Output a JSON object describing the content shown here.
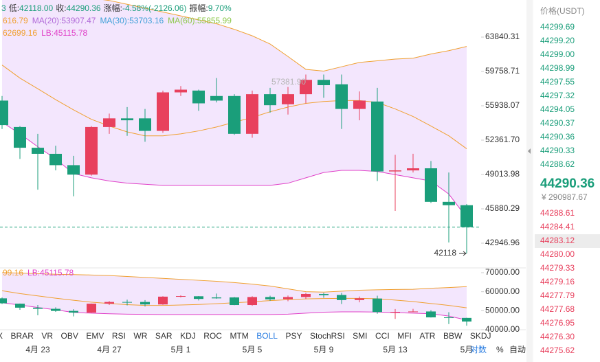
{
  "header": {
    "stats": [
      {
        "label": "3",
        "value": null
      },
      {
        "label": "低:",
        "value": "42118.00"
      },
      {
        "label": "收:",
        "value": "44290.36"
      },
      {
        "label": "涨幅:",
        "value": "-4.58%(-2126.06)"
      },
      {
        "label": "振幅:",
        "value": "9.70%"
      }
    ],
    "ma_legend": [
      {
        "text": "616.79",
        "color": "#f0a030"
      },
      {
        "text": "MA(20):53907.47",
        "color": "#b06ad8"
      },
      {
        "text": "MA(30):53703.16",
        "color": "#3fa0d8"
      },
      {
        "text": "MA(60):55855.99",
        "color": "#8cc84b"
      }
    ],
    "boll_legend": [
      {
        "text": "62699.16",
        "color": "#f0a030"
      },
      {
        "text": "LB:45115.78",
        "color": "#e040c8"
      }
    ],
    "sub_legend": [
      {
        "text": "99.16",
        "color": "#f0a030"
      },
      {
        "text": "LB:45115.78",
        "color": "#e040c8"
      }
    ]
  },
  "chart_data": [
    {
      "type": "candlestick",
      "log_scale": true,
      "categories": [
        null,
        null,
        "4月 23",
        null,
        null,
        null,
        "4月 27",
        null,
        null,
        null,
        "5月 1",
        null,
        null,
        null,
        "5月 5",
        null,
        null,
        null,
        "5月 9",
        null,
        null,
        null,
        "5月 13",
        null,
        null,
        null,
        "5月"
      ],
      "open": [
        56500,
        53700,
        51600,
        51000,
        49900,
        49000,
        53700,
        54600,
        54600,
        53300,
        57400,
        57600,
        57000,
        57000,
        53000,
        57200,
        56100,
        57200,
        58800,
        58300,
        55600,
        56400,
        49300,
        49400,
        49600,
        46500,
        46200
      ],
      "high": [
        57000,
        53800,
        53000,
        51800,
        50800,
        53800,
        55100,
        55800,
        55600,
        57600,
        58100,
        57700,
        59000,
        57200,
        57600,
        57900,
        58000,
        59400,
        59400,
        59400,
        57500,
        57900,
        50900,
        51000,
        50300,
        49200,
        46300
      ],
      "low": [
        53500,
        50500,
        47600,
        49400,
        47000,
        48900,
        53000,
        52800,
        52200,
        53100,
        57000,
        55400,
        56300,
        52900,
        52600,
        55200,
        55000,
        56200,
        56800,
        53500,
        54400,
        48400,
        45700,
        49200,
        46400,
        43000,
        42118
      ],
      "close": [
        53900,
        51600,
        51000,
        49900,
        49000,
        53700,
        54600,
        54400,
        53300,
        57400,
        57700,
        56200,
        56500,
        53000,
        57200,
        56000,
        57200,
        58800,
        58200,
        55600,
        56500,
        49300,
        49400,
        49600,
        46500,
        46200,
        44290.36
      ],
      "up_color": "#e8405d",
      "down_color": "#1a9e7a",
      "bands": [
        {
          "color": "#f0a030",
          "values": [
            70000,
            69800,
            69500,
            69200,
            69000,
            68800,
            68500,
            68000,
            67500,
            67000,
            66500,
            66000,
            65500,
            64800,
            64000,
            63000,
            61500,
            60000,
            59800,
            60300,
            60800,
            61000,
            61200,
            61300,
            61800,
            62200,
            62699.16
          ]
        },
        {
          "color": "#f0a030",
          "values": [
            60500,
            59000,
            57800,
            56600,
            55500,
            54500,
            53800,
            53200,
            52800,
            52800,
            53000,
            53300,
            53700,
            54200,
            54700,
            55300,
            55800,
            56200,
            56400,
            56500,
            56500,
            56300,
            55600,
            54800,
            53800,
            52800,
            51500
          ]
        },
        {
          "color": "#e040c8",
          "values": [
            54200,
            53000,
            51700,
            50500,
            49100,
            48700,
            48400,
            48200,
            48100,
            48000,
            48000,
            48000,
            48000,
            48000,
            48000,
            48000,
            48200,
            48700,
            49200,
            49400,
            49400,
            49300,
            49000,
            48700,
            48400,
            47200,
            45115.78
          ]
        }
      ],
      "band_fill": "#f3e6fd",
      "ylim": [
        40951,
        68563
      ],
      "yticks": [
        63840.31,
        59758.71,
        55938.07,
        {
          "value": 52361.7,
          "label": "52361.70"
        },
        49013.98,
        45880.29,
        42946.96
      ],
      "annotations": [
        "57381.90",
        "42118"
      ]
    },
    {
      "type": "candlestick-sub",
      "ylim": [
        39278,
        71805
      ],
      "yticks": [
        {
          "value": 70000,
          "label": "70000.00"
        },
        {
          "value": 60000,
          "label": "60000.00"
        },
        {
          "value": 50000,
          "label": "50000.00"
        },
        {
          "value": 40000,
          "label": "40000.00"
        }
      ]
    }
  ],
  "tabs": [
    "X",
    "BRAR",
    "VR",
    "OBV",
    "EMV",
    "RSI",
    "WR",
    "SAR",
    "KDJ",
    "ROC",
    "MTM",
    "BOLL",
    "PSY",
    "StochRSI",
    "SMI",
    "CCI",
    "MFI",
    "ATR",
    "BBW",
    "SKDJ"
  ],
  "active_tab": 11,
  "axis_options": [
    "对数",
    "%",
    "自动"
  ],
  "order_book": {
    "header": "价格(USDT)",
    "asks": [
      "44299.69",
      "44299.20",
      "44299.00",
      "44298.99",
      "44297.55",
      "44297.32",
      "44294.05",
      "44290.37",
      "44290.36",
      "44290.33",
      "44288.62"
    ],
    "last": "44290.36",
    "cny": "¥ 290987.67",
    "bids": [
      "44288.61",
      "44284.41",
      "44283.12",
      "44280.00",
      "44279.33",
      "44279.16",
      "44277.79",
      "44277.68",
      "44276.95",
      "44276.30",
      "44275.62"
    ],
    "highlight": 2
  }
}
